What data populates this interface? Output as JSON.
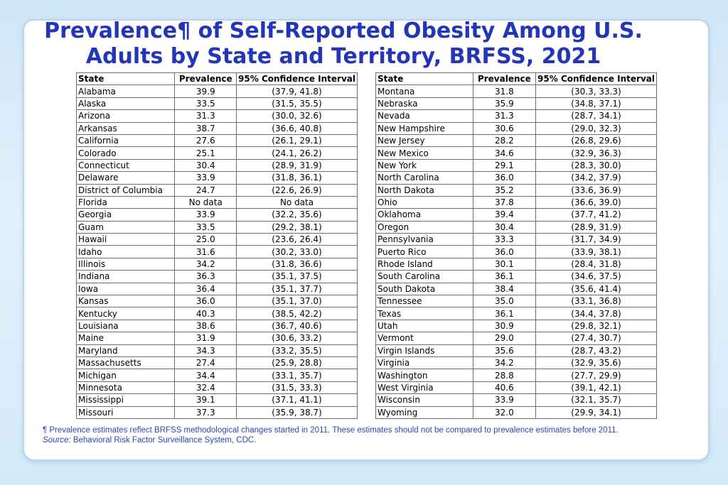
{
  "title": {
    "line1": "Prevalence¶ of Self-Reported Obesity Among U.S.",
    "line2": "Adults by State and Territory, BRFSS, 2021"
  },
  "table": {
    "headers": [
      "State",
      "Prevalence",
      "95% Confidence Interval"
    ],
    "left_rows": [
      [
        "Alabama",
        "39.9",
        "(37.9, 41.8)"
      ],
      [
        "Alaska",
        "33.5",
        "(31.5, 35.5)"
      ],
      [
        "Arizona",
        "31.3",
        "(30.0, 32.6)"
      ],
      [
        "Arkansas",
        "38.7",
        "(36.6, 40.8)"
      ],
      [
        "California",
        "27.6",
        "(26.1, 29.1)"
      ],
      [
        "Colorado",
        "25.1",
        "(24.1, 26.2)"
      ],
      [
        "Connecticut",
        "30.4",
        "(28.9, 31.9)"
      ],
      [
        "Delaware",
        "33.9",
        "(31.8, 36.1)"
      ],
      [
        "District of Columbia",
        "24.7",
        "(22.6, 26.9)"
      ],
      [
        "Florida",
        "No data",
        "No data"
      ],
      [
        "Georgia",
        "33.9",
        "(32.2, 35.6)"
      ],
      [
        "Guam",
        "33.5",
        "(29.2, 38.1)"
      ],
      [
        "Hawaii",
        "25.0",
        "(23.6, 26.4)"
      ],
      [
        "Idaho",
        "31.6",
        "(30.2, 33.0)"
      ],
      [
        "Illinois",
        "34.2",
        "(31.8, 36.6)"
      ],
      [
        "Indiana",
        "36.3",
        "(35.1, 37.5)"
      ],
      [
        "Iowa",
        "36.4",
        "(35.1, 37.7)"
      ],
      [
        "Kansas",
        "36.0",
        "(35.1, 37.0)"
      ],
      [
        "Kentucky",
        "40.3",
        "(38.5, 42.2)"
      ],
      [
        "Louisiana",
        "38.6",
        "(36.7, 40.6)"
      ],
      [
        "Maine",
        "31.9",
        "(30.6, 33.2)"
      ],
      [
        "Maryland",
        "34.3",
        "(33.2, 35.5)"
      ],
      [
        "Massachusetts",
        "27.4",
        "(25.9, 28.8)"
      ],
      [
        "Michigan",
        "34.4",
        "(33.1, 35.7)"
      ],
      [
        "Minnesota",
        "32.4",
        "(31.5, 33.3)"
      ],
      [
        "Mississippi",
        "39.1",
        "(37.1, 41.1)"
      ],
      [
        "Missouri",
        "37.3",
        "(35.9, 38.7)"
      ]
    ],
    "right_rows": [
      [
        "Montana",
        "31.8",
        "(30.3, 33.3)"
      ],
      [
        "Nebraska",
        "35.9",
        "(34.8, 37.1)"
      ],
      [
        "Nevada",
        "31.3",
        "(28.7, 34.1)"
      ],
      [
        "New Hampshire",
        "30.6",
        "(29.0, 32.3)"
      ],
      [
        "New Jersey",
        "28.2",
        "(26.8, 29.6)"
      ],
      [
        "New Mexico",
        "34.6",
        "(32.9, 36.3)"
      ],
      [
        "New York",
        "29.1",
        "(28.3, 30.0)"
      ],
      [
        "North Carolina",
        "36.0",
        "(34.2, 37.9)"
      ],
      [
        "North Dakota",
        "35.2",
        "(33.6, 36.9)"
      ],
      [
        "Ohio",
        "37.8",
        "(36.6, 39.0)"
      ],
      [
        "Oklahoma",
        "39.4",
        "(37.7, 41.2)"
      ],
      [
        "Oregon",
        "30.4",
        "(28.9, 31.9)"
      ],
      [
        "Pennsylvania",
        "33.3",
        "(31.7, 34.9)"
      ],
      [
        "Puerto Rico",
        "36.0",
        "(33.9, 38.1)"
      ],
      [
        "Rhode Island",
        "30.1",
        "(28.4, 31.8)"
      ],
      [
        "South Carolina",
        "36.1",
        "(34.6, 37.5)"
      ],
      [
        "South Dakota",
        "38.4",
        "(35.6, 41.4)"
      ],
      [
        "Tennessee",
        "35.0",
        "(33.1, 36.8)"
      ],
      [
        "Texas",
        "36.1",
        "(34.4, 37.8)"
      ],
      [
        "Utah",
        "30.9",
        "(29.8, 32.1)"
      ],
      [
        "Vermont",
        "29.0",
        "(27.4, 30.7)"
      ],
      [
        "Virgin Islands",
        "35.6",
        "(28.7, 43.2)"
      ],
      [
        "Virginia",
        "34.2",
        "(32.9, 35.6)"
      ],
      [
        "Washington",
        "28.8",
        "(27.7, 29.9)"
      ],
      [
        "West Virginia",
        "40.6",
        "(39.1, 42.1)"
      ],
      [
        "Wisconsin",
        "33.9",
        "(32.1, 35.7)"
      ],
      [
        "Wyoming",
        "32.0",
        "(29.9, 34.1)"
      ]
    ]
  },
  "footnotes": {
    "note": "¶ Prevalence estimates reflect BRFSS methodological changes started in 2011. These estimates should not be compared to prevalence estimates before 2011.",
    "source_label": "Source:",
    "source_text": " Behavioral Risk Factor Surveillance System, CDC."
  },
  "colors": {
    "title": "#2436b8",
    "footnote": "#2b48b5",
    "border": "#b9d6ee"
  }
}
